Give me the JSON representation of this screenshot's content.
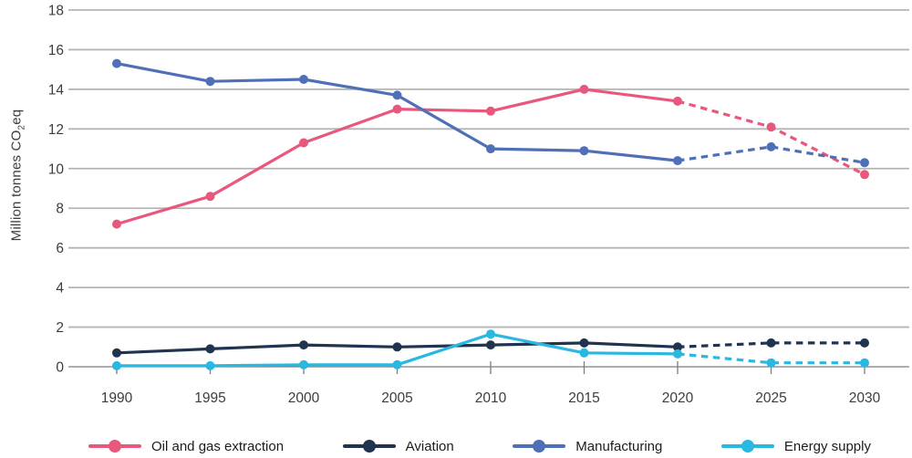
{
  "figure": {
    "ylabel": {
      "prefix": "Million tonnes CO",
      "sub": "2",
      "suffix": "eq"
    }
  },
  "chart_data": {
    "type": "line",
    "title": "",
    "xlabel": "",
    "ylabel": "Million tonnes CO2eq",
    "x": [
      1990,
      1995,
      2000,
      2005,
      2010,
      2015,
      2020,
      2025,
      2030
    ],
    "ylim": [
      0,
      18
    ],
    "ytick_step": 2,
    "grid": true,
    "legend_position": "bottom",
    "projection_note": "lines are dashed (projected) from 2020 onward",
    "series": [
      {
        "name": "Oil and gas extraction",
        "color": "#e8587c",
        "values": [
          7.2,
          8.6,
          11.3,
          13.0,
          12.9,
          14.0,
          13.4,
          12.1,
          9.7
        ],
        "dashed_from": 2020
      },
      {
        "name": "Aviation",
        "color": "#20334f",
        "values": [
          0.7,
          0.9,
          1.1,
          1.0,
          1.1,
          1.2,
          1.0,
          1.2,
          1.2
        ],
        "dashed_from": 2020
      },
      {
        "name": "Manufacturing",
        "color": "#4f6fb8",
        "values": [
          15.3,
          14.4,
          14.5,
          13.7,
          11.0,
          10.9,
          10.4,
          11.1,
          10.3
        ],
        "dashed_from": 2020
      },
      {
        "name": "Energy supply",
        "color": "#29b8e0",
        "values": [
          0.05,
          0.05,
          0.1,
          0.1,
          1.65,
          0.7,
          0.65,
          0.2,
          0.2
        ],
        "dashed_from": 2020
      }
    ],
    "axis_colors": {
      "gridline": "#b4b4b4",
      "axis": "#7d7d7d",
      "tick_label": "#3d3d3d"
    }
  }
}
